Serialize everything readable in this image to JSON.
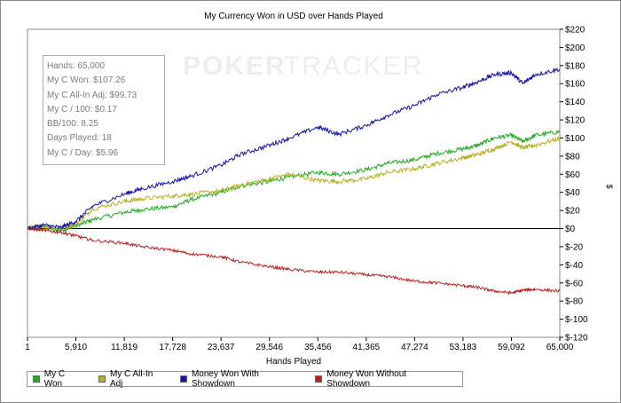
{
  "stats": [
    "Hands: 65,000",
    "My C Won: $107.26",
    "My C All-In Adj: $99.73",
    "My C / 100: $0.17",
    "BB/100: 8.25",
    "Days Played: 18",
    "My C / Day: $5.96"
  ],
  "watermark": {
    "brand_left": "POKER",
    "brand_right": "TRACKER"
  },
  "chart_data": {
    "type": "line",
    "title": "My Currency Won in USD over Hands Played",
    "xlabel": "Hands Played",
    "ylabel": "$",
    "xlim": [
      1,
      65000
    ],
    "ylim": [
      -120,
      220
    ],
    "x_ticks": [
      1,
      5910,
      11819,
      17728,
      23637,
      29546,
      35456,
      41365,
      47274,
      53183,
      59092,
      65000
    ],
    "x_tick_labels": [
      "1",
      "5,910",
      "11,819",
      "17,728",
      "23,637",
      "29,546",
      "35,456",
      "41,365",
      "47,274",
      "53,183",
      "59,092",
      "65,000"
    ],
    "y_ticks": [
      220,
      200,
      180,
      160,
      140,
      120,
      100,
      80,
      60,
      40,
      20,
      0,
      -20,
      -40,
      -60,
      -80,
      -100,
      -120
    ],
    "y_tick_labels": [
      "$220",
      "$200",
      "$180",
      "$160",
      "$140",
      "$120",
      "$100",
      "$80",
      "$60",
      "$40",
      "$20",
      "$0",
      "$-20",
      "$-40",
      "$-60",
      "$-80",
      "$-100",
      "$-120"
    ],
    "grid": false,
    "legend_position": "bottom",
    "series": [
      {
        "name": "My C Won",
        "color": "#22aa22",
        "x": [
          1,
          2000,
          4000,
          5910,
          8000,
          11819,
          14000,
          17728,
          20000,
          23637,
          26000,
          29546,
          32000,
          35456,
          38000,
          41365,
          44000,
          47274,
          50000,
          53183,
          55000,
          57000,
          59092,
          60500,
          62000,
          65000
        ],
        "values": [
          0,
          2,
          -2,
          3,
          10,
          18,
          21,
          24,
          32,
          40,
          47,
          52,
          57,
          62,
          60,
          65,
          72,
          76,
          83,
          88,
          92,
          100,
          103,
          96,
          103,
          107
        ]
      },
      {
        "name": "My C All-In Adj",
        "color": "#b5b020",
        "x": [
          1,
          2000,
          4000,
          5910,
          8000,
          11819,
          14000,
          17728,
          20000,
          23637,
          26000,
          29546,
          32000,
          35456,
          38000,
          41365,
          44000,
          47274,
          50000,
          53183,
          55000,
          57000,
          59092,
          60500,
          62000,
          65000
        ],
        "values": [
          0,
          3,
          0,
          5,
          22,
          30,
          33,
          36,
          38,
          42,
          48,
          55,
          60,
          53,
          52,
          55,
          62,
          66,
          72,
          78,
          82,
          88,
          96,
          89,
          92,
          99.7
        ]
      },
      {
        "name": "Money Won With Showdown",
        "color": "#1515aa",
        "x": [
          1,
          2000,
          4000,
          5910,
          8000,
          11819,
          14000,
          17728,
          20000,
          23637,
          26000,
          29546,
          32000,
          35456,
          38000,
          41365,
          44000,
          47274,
          50000,
          53183,
          55000,
          57000,
          59092,
          60500,
          62000,
          65000
        ],
        "values": [
          0,
          4,
          1,
          8,
          25,
          38,
          44,
          52,
          58,
          70,
          82,
          92,
          100,
          112,
          104,
          114,
          125,
          136,
          148,
          156,
          162,
          170,
          172,
          160,
          170,
          176
        ]
      },
      {
        "name": "Money Won Without Showdown",
        "color": "#bb2222",
        "x": [
          1,
          2000,
          4000,
          5910,
          8000,
          11819,
          14000,
          17728,
          20000,
          23637,
          26000,
          29546,
          32000,
          35456,
          38000,
          41365,
          44000,
          47274,
          50000,
          53183,
          55000,
          57000,
          59092,
          60500,
          62000,
          65000
        ],
        "values": [
          0,
          -2,
          -4,
          -8,
          -13,
          -16,
          -20,
          -24,
          -28,
          -31,
          -37,
          -42,
          -45,
          -48,
          -48,
          -51,
          -53,
          -58,
          -60,
          -63,
          -65,
          -69,
          -71,
          -68,
          -67,
          -69
        ]
      }
    ]
  }
}
